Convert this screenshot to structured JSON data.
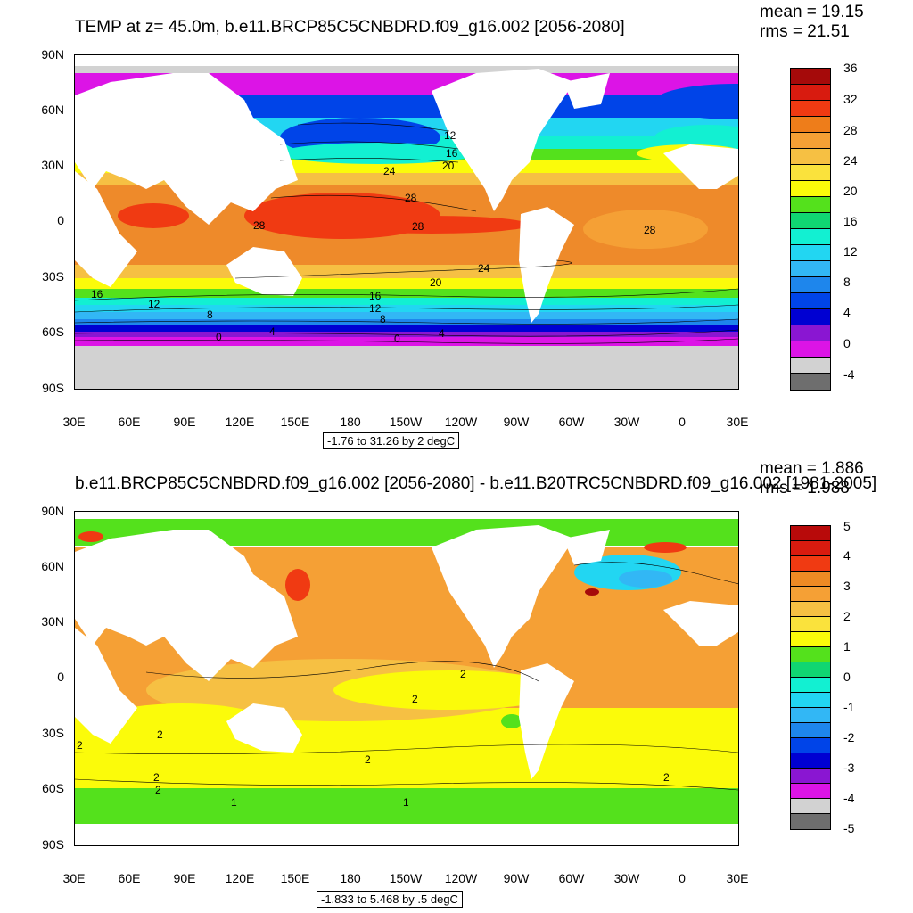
{
  "panels": [
    {
      "title": "TEMP at z=  45.0m, b.e11.BRCP85C5CNBDRD.f09_g16.002 [2056-2080]",
      "mean_label": "mean = 19.15",
      "rms_label": "rms = 21.51",
      "range_label": "-1.76 to 31.26 by 2 degC",
      "lat_labels": [
        "90N",
        "60N",
        "30N",
        "0",
        "30S",
        "60S",
        "90S"
      ],
      "lon_labels": [
        "30E",
        "60E",
        "90E",
        "120E",
        "150E",
        "180",
        "150W",
        "120W",
        "90W",
        "60W",
        "30W",
        "0",
        "30E"
      ],
      "colorbar_labels": [
        "36",
        "32",
        "28",
        "24",
        "20",
        "16",
        "12",
        "8",
        "4",
        "0",
        "-4"
      ],
      "colorbar_colors": [
        "#a50a0a",
        "#d81b0f",
        "#f03a12",
        "#ee7d1a",
        "#f5a035",
        "#f6c043",
        "#fae23c",
        "#fbfb0a",
        "#54e11c",
        "#10d672",
        "#12f0d2",
        "#22d6f2",
        "#32b7f5",
        "#1e86ec",
        "#0044e8",
        "#0000d2",
        "#8a16d2",
        "#dc14e6",
        "#d2d2d2",
        "#6e6e6e"
      ],
      "contour_labels": [
        "12",
        "16",
        "20",
        "24",
        "28",
        "28",
        "28",
        "28",
        "24",
        "20",
        "16",
        "12",
        "8",
        "4",
        "0",
        "16",
        "12",
        "8",
        "4",
        "0"
      ]
    },
    {
      "title": "b.e11.BRCP85C5CNBDRD.f09_g16.002 [2056-2080] - b.e11.B20TRC5CNBDRD.f09_g16.002 [1981-2005]",
      "mean_label": "mean = 1.886",
      "rms_label": "rms = 1.988",
      "range_label": "-1.833 to 5.468 by .5 degC",
      "lat_labels": [
        "90N",
        "60N",
        "30N",
        "0",
        "30S",
        "60S",
        "90S"
      ],
      "lon_labels": [
        "30E",
        "60E",
        "90E",
        "120E",
        "150E",
        "180",
        "150W",
        "120W",
        "90W",
        "60W",
        "30W",
        "0",
        "30E"
      ],
      "colorbar_labels": [
        "5",
        "4",
        "3",
        "2",
        "1",
        "0",
        "-1",
        "-2",
        "-3",
        "-4",
        "-5"
      ],
      "colorbar_colors": [
        "#b80a0a",
        "#d81b0f",
        "#f03a12",
        "#ee8a24",
        "#f5a035",
        "#f6c043",
        "#fae23c",
        "#fbfb0a",
        "#54e11c",
        "#10d672",
        "#12f0d2",
        "#22d6f2",
        "#32b7f5",
        "#1e86ec",
        "#0044e8",
        "#0000d2",
        "#8a16d2",
        "#dc14e6",
        "#d2d2d2",
        "#6e6e6e"
      ],
      "contour_labels": [
        "2",
        "2",
        "2",
        "2",
        "2",
        "2",
        "2",
        "1",
        "1",
        "2"
      ]
    }
  ]
}
